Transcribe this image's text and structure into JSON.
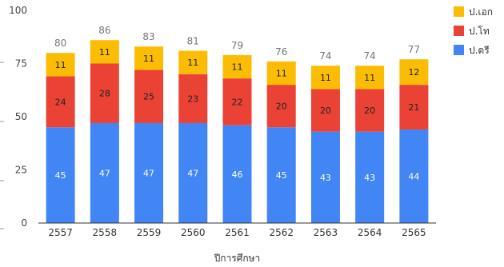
{
  "chart_data": {
    "type": "bar",
    "stacked": true,
    "categories": [
      "2557",
      "2558",
      "2559",
      "2560",
      "2561",
      "2562",
      "2563",
      "2564",
      "2565"
    ],
    "series": [
      {
        "name": "ป.ตรี",
        "color": "#4285f4",
        "values": [
          45,
          47,
          47,
          47,
          46,
          45,
          43,
          43,
          44
        ]
      },
      {
        "name": "ป.โท",
        "color": "#ea4335",
        "values": [
          24,
          28,
          25,
          23,
          22,
          20,
          20,
          20,
          21
        ]
      },
      {
        "name": "ป.เอก",
        "color": "#fbbc04",
        "values": [
          11,
          11,
          11,
          11,
          11,
          11,
          11,
          11,
          12
        ]
      }
    ],
    "totals": [
      80,
      86,
      83,
      81,
      79,
      76,
      74,
      74,
      77
    ],
    "yticks": [
      0,
      25,
      50,
      75,
      100
    ],
    "ylim": [
      0,
      100
    ],
    "xlabel": "ปีการศึกษา",
    "ylabel": "",
    "title": "",
    "grid": false,
    "legend_position": "right"
  }
}
